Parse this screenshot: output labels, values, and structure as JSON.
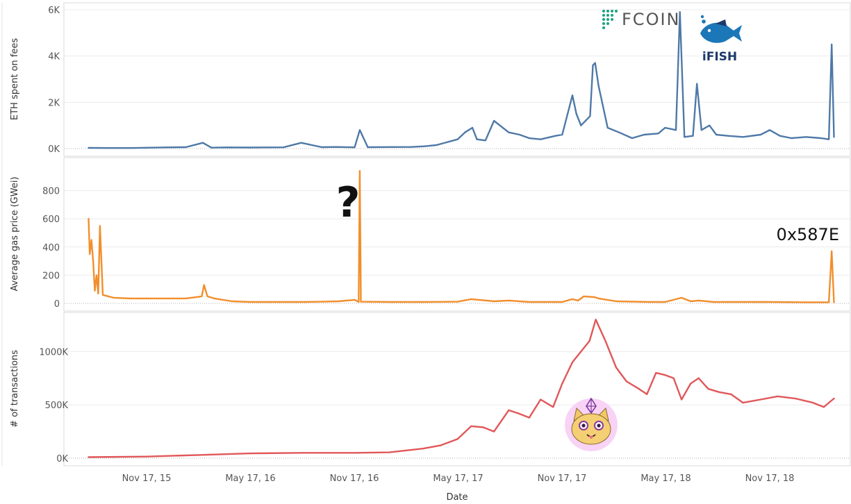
{
  "chart_data": [
    {
      "type": "line",
      "ylabel": "ETH spent on fees",
      "ylim": [
        0,
        6000
      ],
      "yticks": [
        "0K",
        "2K",
        "4K",
        "6K"
      ],
      "yticks_values": [
        0,
        2000,
        4000,
        6000
      ],
      "color": "#4e79a7",
      "x": [
        "2015-08-07",
        "2015-09-15",
        "2015-10-20",
        "2015-11-17",
        "2015-12-20",
        "2016-01-25",
        "2016-02-24",
        "2016-03-10",
        "2016-04-05",
        "2016-05-17",
        "2016-06-17",
        "2016-07-15",
        "2016-08-15",
        "2016-09-20",
        "2016-10-15",
        "2016-11-17",
        "2016-11-26",
        "2016-12-10",
        "2017-01-20",
        "2017-02-25",
        "2017-03-20",
        "2017-04-10",
        "2017-05-17",
        "2017-05-30",
        "2017-06-12",
        "2017-06-20",
        "2017-07-05",
        "2017-07-20",
        "2017-08-15",
        "2017-09-03",
        "2017-09-20",
        "2017-10-10",
        "2017-11-05",
        "2017-11-17",
        "2017-12-05",
        "2017-12-12",
        "2017-12-20",
        "2018-01-05",
        "2018-01-10",
        "2018-01-14",
        "2018-01-20",
        "2018-02-05",
        "2018-02-25",
        "2018-03-20",
        "2018-04-10",
        "2018-05-05",
        "2018-05-17",
        "2018-06-05",
        "2018-06-12",
        "2018-06-20",
        "2018-07-05",
        "2018-07-12",
        "2018-07-20",
        "2018-08-03",
        "2018-08-15",
        "2018-09-05",
        "2018-10-01",
        "2018-11-01",
        "2018-11-17",
        "2018-12-05",
        "2018-12-25",
        "2019-01-20",
        "2019-02-15",
        "2019-03-01",
        "2019-03-06",
        "2019-03-10"
      ],
      "values": [
        30,
        25,
        25,
        35,
        50,
        60,
        250,
        40,
        50,
        45,
        50,
        55,
        250,
        60,
        70,
        55,
        800,
        60,
        65,
        70,
        100,
        150,
        400,
        700,
        900,
        400,
        350,
        1200,
        700,
        600,
        450,
        400,
        550,
        600,
        2300,
        1500,
        1000,
        1400,
        3600,
        3700,
        2700,
        900,
        700,
        450,
        600,
        650,
        900,
        800,
        5900,
        500,
        550,
        2800,
        800,
        1000,
        600,
        550,
        500,
        600,
        800,
        550,
        450,
        500,
        450,
        400,
        4500,
        500
      ]
    },
    {
      "type": "line",
      "ylabel": "Average gas price (GWei)",
      "ylim": [
        0,
        1000
      ],
      "yticks": [
        "0",
        "200",
        "400",
        "600",
        "800"
      ],
      "yticks_values": [
        0,
        200,
        400,
        600,
        800
      ],
      "color": "#f28e2b",
      "x": [
        "2015-08-07",
        "2015-08-09",
        "2015-08-12",
        "2015-08-15",
        "2015-08-18",
        "2015-08-21",
        "2015-08-24",
        "2015-08-27",
        "2015-09-01",
        "2015-09-20",
        "2015-10-20",
        "2015-11-17",
        "2016-01-25",
        "2016-02-22",
        "2016-02-26",
        "2016-03-03",
        "2016-03-15",
        "2016-04-15",
        "2016-05-17",
        "2016-06-17",
        "2016-07-20",
        "2016-08-20",
        "2016-09-20",
        "2016-10-20",
        "2016-11-17",
        "2016-11-24",
        "2016-11-26",
        "2016-11-28",
        "2017-01-20",
        "2017-03-20",
        "2017-05-17",
        "2017-06-10",
        "2017-07-20",
        "2017-08-15",
        "2017-09-20",
        "2017-11-17",
        "2017-12-05",
        "2017-12-15",
        "2017-12-25",
        "2018-01-12",
        "2018-01-20",
        "2018-02-20",
        "2018-04-20",
        "2018-05-17",
        "2018-06-15",
        "2018-07-01",
        "2018-07-15",
        "2018-08-10",
        "2018-11-17",
        "2019-01-20",
        "2019-03-01",
        "2019-03-06",
        "2019-03-10"
      ],
      "values": [
        600,
        350,
        450,
        300,
        90,
        200,
        70,
        550,
        60,
        40,
        35,
        35,
        35,
        50,
        130,
        50,
        35,
        15,
        10,
        10,
        10,
        10,
        12,
        15,
        25,
        10,
        940,
        12,
        10,
        10,
        12,
        30,
        15,
        20,
        10,
        10,
        30,
        20,
        50,
        45,
        35,
        15,
        10,
        10,
        40,
        15,
        20,
        10,
        10,
        8,
        8,
        370,
        8
      ]
    },
    {
      "type": "line",
      "ylabel": "# of transactions",
      "xlabel": "Date",
      "ylim": [
        0,
        1400000
      ],
      "yticks": [
        "0K",
        "500K",
        "1000K"
      ],
      "yticks_values": [
        0,
        500000,
        1000000
      ],
      "color": "#e15759",
      "x_tick_labels": [
        "Nov 17, 15",
        "May 17, 16",
        "Nov 17, 16",
        "May 17, 17",
        "Nov 17, 17",
        "May 17, 18",
        "Nov 17, 18"
      ],
      "x": [
        "2015-08-07",
        "2015-11-17",
        "2016-02-17",
        "2016-05-17",
        "2016-08-17",
        "2016-11-17",
        "2017-01-17",
        "2017-03-17",
        "2017-04-17",
        "2017-05-17",
        "2017-06-10",
        "2017-07-01",
        "2017-07-20",
        "2017-08-15",
        "2017-09-01",
        "2017-09-20",
        "2017-10-10",
        "2017-11-01",
        "2017-11-17",
        "2017-12-05",
        "2017-12-20",
        "2018-01-04",
        "2018-01-15",
        "2018-02-01",
        "2018-02-20",
        "2018-03-10",
        "2018-04-01",
        "2018-04-15",
        "2018-05-01",
        "2018-05-17",
        "2018-06-01",
        "2018-06-15",
        "2018-07-01",
        "2018-07-15",
        "2018-08-01",
        "2018-08-20",
        "2018-09-10",
        "2018-10-01",
        "2018-11-01",
        "2018-12-01",
        "2019-01-01",
        "2019-02-01",
        "2019-02-20",
        "2019-03-10"
      ],
      "values": [
        10000,
        15000,
        30000,
        45000,
        50000,
        50000,
        55000,
        90000,
        120000,
        180000,
        300000,
        290000,
        250000,
        450000,
        420000,
        380000,
        550000,
        480000,
        700000,
        900000,
        1000000,
        1100000,
        1300000,
        1100000,
        850000,
        720000,
        650000,
        600000,
        800000,
        780000,
        750000,
        550000,
        700000,
        750000,
        650000,
        620000,
        600000,
        520000,
        550000,
        580000,
        560000,
        520000,
        480000,
        560000
      ]
    }
  ],
  "annotations": {
    "question_mark": "?",
    "address_label": "0x587E",
    "fcoin_logo": "FCOIN",
    "ifish_logo": "iFISH"
  },
  "colors": {
    "fees": "#4e79a7",
    "gas": "#f28e2b",
    "tx": "#e15759",
    "fcoin_accent": "#1aa07f",
    "ifish_blue": "#1c77b8",
    "ifish_dark": "#1b3a6b"
  }
}
